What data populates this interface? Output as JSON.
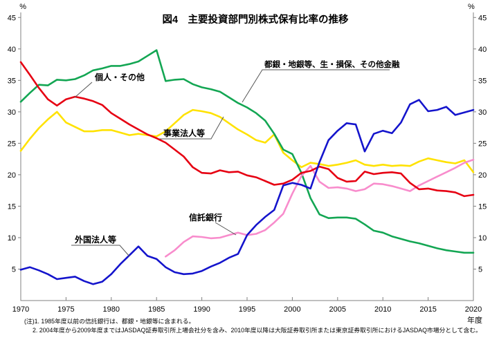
{
  "title": "図4　主要投資部門別株式保有比率の推移",
  "axis": {
    "unit_left": "%",
    "unit_right": "%",
    "x_unit": "年度",
    "y_ticks": [
      5,
      10,
      15,
      20,
      25,
      30,
      35,
      40,
      45
    ],
    "x_ticks": [
      1970,
      1975,
      1980,
      1985,
      1990,
      1995,
      2000,
      2005,
      2010,
      2015,
      2020
    ]
  },
  "notes": [
    "(注)1. 1985年度以前の信託銀行は、都銀・地銀等に含まれる。",
    "2. 2004年度から2009年度まではJASDAQ証券取引所上場会社分を含み、2010年度以降は大阪証券取引所または東京証券取引所におけるJASDAQ市場分として含む。"
  ],
  "chart_data": {
    "type": "line",
    "title": "図4　主要投資部門別株式保有比率の推移",
    "xlabel": "年度",
    "ylabel": "%",
    "xlim": [
      1970,
      2020
    ],
    "ylim": [
      0,
      45
    ],
    "grid": false,
    "legend_position": "inline-annotations",
    "x": [
      1970,
      1971,
      1972,
      1973,
      1974,
      1975,
      1976,
      1977,
      1978,
      1979,
      1980,
      1981,
      1982,
      1983,
      1984,
      1985,
      1986,
      1987,
      1988,
      1989,
      1990,
      1991,
      1992,
      1993,
      1994,
      1995,
      1996,
      1997,
      1998,
      1999,
      2000,
      2001,
      2002,
      2003,
      2004,
      2005,
      2006,
      2007,
      2008,
      2009,
      2010,
      2011,
      2012,
      2013,
      2014,
      2015,
      2016,
      2017,
      2018,
      2019,
      2020
    ],
    "series": [
      {
        "id": "business-corporations",
        "name": "事業法人等",
        "color": "#ffe200",
        "values": [
          23.8,
          25.7,
          27.4,
          28.8,
          30.0,
          28.3,
          27.6,
          26.9,
          26.9,
          27.1,
          27.1,
          26.7,
          26.3,
          26.5,
          26.3,
          26.1,
          26.9,
          28.2,
          29.5,
          30.3,
          30.1,
          29.8,
          29.2,
          28.2,
          27.2,
          26.4,
          25.5,
          25.1,
          26.4,
          23.5,
          22.3,
          21.2,
          21.9,
          21.7,
          21.4,
          21.6,
          21.9,
          22.3,
          21.6,
          21.4,
          21.6,
          21.4,
          21.5,
          21.4,
          22.1,
          22.6,
          22.3,
          22.0,
          21.8,
          22.3,
          20.4
        ]
      },
      {
        "id": "banks-insurance-other-financial",
        "name": "都銀・地銀等、生・損保、その他金融",
        "color": "#13a653",
        "values": [
          31.6,
          33.0,
          34.3,
          34.2,
          35.1,
          35.0,
          35.2,
          35.8,
          36.6,
          36.9,
          37.3,
          37.3,
          37.6,
          38.0,
          38.9,
          39.8,
          34.9,
          35.1,
          35.2,
          34.4,
          33.9,
          33.6,
          33.2,
          32.3,
          31.4,
          30.7,
          29.8,
          28.6,
          26.5,
          24.0,
          23.3,
          20.3,
          16.3,
          13.7,
          13.1,
          13.2,
          13.2,
          13.0,
          12.1,
          11.1,
          10.8,
          10.2,
          9.8,
          9.4,
          9.1,
          8.7,
          8.3,
          8.0,
          7.8,
          7.6,
          7.6
        ]
      },
      {
        "id": "trust-banks",
        "name": "信託銀行",
        "color": "#f88ccc",
        "values": [
          null,
          null,
          null,
          null,
          null,
          null,
          null,
          null,
          null,
          null,
          null,
          null,
          null,
          null,
          null,
          null,
          7.0,
          8.0,
          9.3,
          10.2,
          10.1,
          9.9,
          10.0,
          10.4,
          10.8,
          10.4,
          10.6,
          11.2,
          12.4,
          13.8,
          17.0,
          19.8,
          21.4,
          18.9,
          17.9,
          18.0,
          17.8,
          17.4,
          17.7,
          18.6,
          18.5,
          18.2,
          17.8,
          17.4,
          18.3,
          19.0,
          19.7,
          20.4,
          21.1,
          21.9,
          22.4
        ]
      },
      {
        "id": "individuals",
        "name": "個人・その他",
        "color": "#e60012",
        "values": [
          37.9,
          35.9,
          33.8,
          32.0,
          31.0,
          32.0,
          32.4,
          32.1,
          31.7,
          31.1,
          29.8,
          28.9,
          28.0,
          27.2,
          26.4,
          25.8,
          25.1,
          24.0,
          22.9,
          21.2,
          20.3,
          20.2,
          20.7,
          20.4,
          20.5,
          19.9,
          19.6,
          19.0,
          18.4,
          18.6,
          19.2,
          20.3,
          20.6,
          21.3,
          20.9,
          19.5,
          18.9,
          19.0,
          20.5,
          20.1,
          20.3,
          20.4,
          20.2,
          18.7,
          17.7,
          17.8,
          17.5,
          17.4,
          17.2,
          16.6,
          16.8
        ]
      },
      {
        "id": "foreign-investors",
        "name": "外国法人等",
        "color": "#1414cc",
        "values": [
          4.9,
          5.3,
          4.8,
          4.2,
          3.4,
          3.6,
          3.8,
          3.1,
          2.6,
          3.0,
          4.2,
          5.8,
          7.2,
          8.6,
          7.1,
          6.6,
          5.3,
          4.5,
          4.2,
          4.3,
          4.7,
          5.4,
          6.0,
          6.8,
          7.4,
          10.4,
          12.0,
          13.3,
          14.4,
          18.3,
          18.7,
          18.4,
          17.8,
          22.0,
          25.5,
          27.0,
          28.2,
          28.0,
          23.7,
          26.5,
          27.0,
          26.6,
          28.3,
          31.2,
          31.9,
          30.1,
          30.3,
          30.8,
          29.5,
          29.9,
          30.3
        ]
      }
    ]
  }
}
